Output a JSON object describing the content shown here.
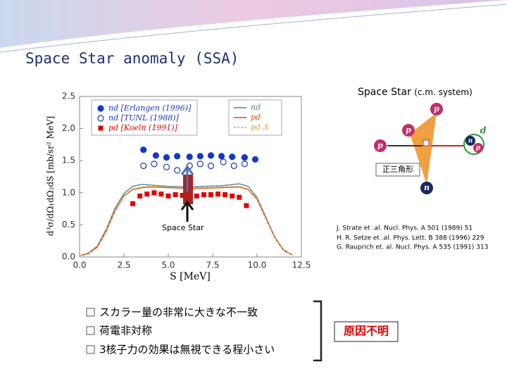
{
  "slide": {
    "title": "Space Star anomaly (SSA)"
  },
  "diagram": {
    "title": "Space Star",
    "subtitle": "(c.m. system)",
    "shape_label": "正三角形",
    "particles": [
      "p",
      "p",
      "p",
      "d",
      "n",
      "p",
      "n"
    ]
  },
  "references": [
    "J. Strate et .al. Nucl. Phys. A 501 (1989) 51",
    "H. R. Setze et .al. Phys. Lett. B 388 (1996) 229",
    "G. Rauprich et. al. Nucl. Phys. A 535 (1991) 313"
  ],
  "bullets": [
    "スカラー量の非常に大きな不一致",
    "荷電非対称",
    "3核子力の効果は無視できる程小さい"
  ],
  "conclusion": "原因不明",
  "chart_data": {
    "type": "scatter",
    "xlabel": "S [MeV]",
    "ylabel": "d³σ/dΩ₁dΩ₂dS [mb/sr² MeV]",
    "annotation": "Space Star",
    "xlim": [
      0,
      12.5
    ],
    "ylim": [
      0,
      2.5
    ],
    "xticks": [
      {
        "value": 0,
        "label": "0.0"
      },
      2.5,
      {
        "value": 5,
        "label": "5.0"
      },
      7.5,
      {
        "value": 10,
        "label": "10.0"
      },
      12.5
    ],
    "yticks": [
      {
        "value": 0,
        "label": "0.0"
      },
      0.5,
      {
        "value": 1,
        "label": "1.0"
      },
      1.5,
      {
        "value": 2,
        "label": "2.0"
      },
      2.5
    ],
    "series": [
      {
        "name": "nd [Erlangen (1996)]",
        "color": "#1438c8",
        "marker": "filled-circle",
        "x": [
          3.6,
          4.3,
          4.9,
          5.5,
          6.2,
          6.8,
          7.4,
          8.0,
          8.6,
          9.3,
          9.9
        ],
        "values": [
          1.67,
          1.58,
          1.55,
          1.57,
          1.56,
          1.57,
          1.58,
          1.57,
          1.56,
          1.55,
          1.52
        ]
      },
      {
        "name": "nd [TUNL (1988)]",
        "color": "#1438c8",
        "marker": "open-circle",
        "x": [
          3.6,
          4.2,
          4.9,
          5.5,
          6.2,
          6.8,
          7.4,
          8.1,
          8.7,
          9.3
        ],
        "values": [
          1.42,
          1.45,
          1.4,
          1.35,
          1.42,
          1.45,
          1.42,
          1.48,
          1.42,
          1.45
        ]
      },
      {
        "name": "pd [Koeln (1991)]",
        "color": "#e00000",
        "marker": "square",
        "x": [
          3.0,
          3.4,
          3.8,
          4.2,
          4.6,
          5.0,
          5.4,
          5.8,
          6.2,
          6.6,
          7.0,
          7.4,
          7.8,
          8.2,
          8.6,
          9.0,
          9.4
        ],
        "values": [
          0.83,
          0.95,
          0.98,
          1.0,
          0.98,
          0.95,
          0.97,
          0.96,
          0.98,
          0.95,
          0.97,
          0.97,
          0.98,
          0.97,
          0.95,
          0.93,
          0.8
        ]
      },
      {
        "name": "nd",
        "color": "#4f86a8",
        "marker": "line",
        "x": [
          0,
          0.5,
          1,
          1.5,
          2,
          2.5,
          3,
          3.5,
          4,
          5,
          6,
          7,
          8,
          9,
          9.5,
          10,
          10.5,
          11,
          11.5,
          12
        ],
        "values": [
          0.02,
          0.06,
          0.17,
          0.43,
          0.76,
          0.99,
          1.1,
          1.13,
          1.12,
          1.1,
          1.09,
          1.1,
          1.11,
          1.14,
          1.1,
          0.93,
          0.62,
          0.31,
          0.11,
          0.03
        ]
      },
      {
        "name": "pd",
        "color": "#e04a10",
        "marker": "line",
        "x": [
          0,
          0.5,
          1,
          1.5,
          2,
          2.5,
          3,
          3.5,
          4,
          5,
          6,
          7,
          8,
          9,
          9.5,
          10,
          10.5,
          11,
          11.5,
          12
        ],
        "values": [
          0.02,
          0.05,
          0.15,
          0.4,
          0.72,
          0.95,
          1.05,
          1.08,
          1.09,
          1.08,
          1.07,
          1.07,
          1.08,
          1.09,
          1.05,
          0.9,
          0.6,
          0.3,
          0.1,
          0.03
        ]
      },
      {
        "name": "pd Δ",
        "color": "#e8a030",
        "marker": "dashed",
        "x": [
          0,
          0.5,
          1,
          1.5,
          2,
          2.5,
          3,
          3.5,
          4,
          5,
          6,
          7,
          8,
          9,
          9.5,
          10,
          10.5,
          11,
          11.5,
          12
        ],
        "values": [
          0.02,
          0.05,
          0.16,
          0.41,
          0.73,
          0.96,
          1.06,
          1.09,
          1.1,
          1.09,
          1.08,
          1.08,
          1.09,
          1.1,
          1.06,
          0.91,
          0.61,
          0.3,
          0.1,
          0.03
        ]
      }
    ]
  }
}
